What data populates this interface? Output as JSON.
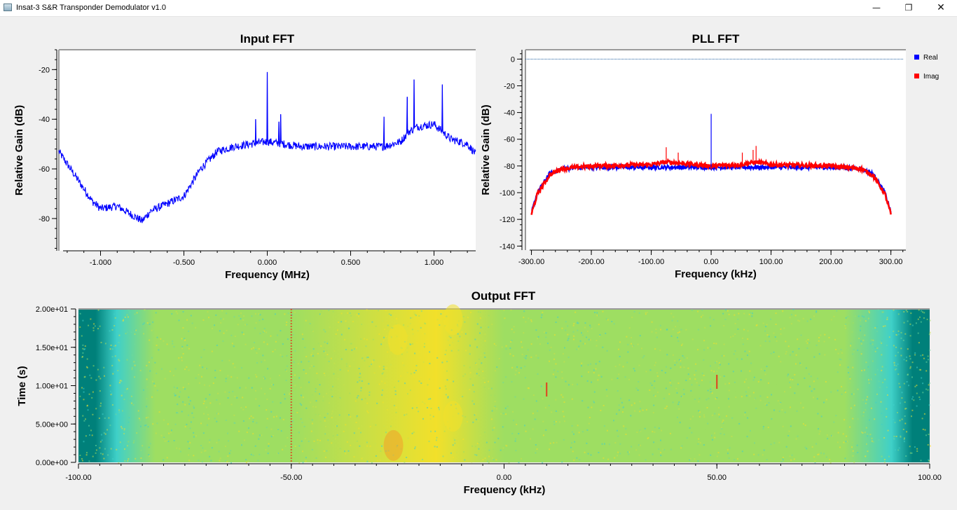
{
  "window": {
    "title": "Insat-3 S&R Transponder Demodulator v1.0",
    "minimize_glyph": "—",
    "maximize_glyph": "❐",
    "close_glyph": "✕"
  },
  "chart_data": [
    {
      "type": "line",
      "title": "Input FFT",
      "xlabel": "Frequency (MHz)",
      "ylabel": "Relative Gain (dB)",
      "xlim": [
        -1.25,
        1.25
      ],
      "ylim": [
        -93,
        -12
      ],
      "x_ticks": [
        -1.0,
        -0.5,
        0.0,
        0.5,
        1.0
      ],
      "x_tick_labels": [
        "-1.000",
        "-0.500",
        "0.000",
        "0.500",
        "1.000"
      ],
      "y_ticks": [
        -80,
        -60,
        -40,
        -20
      ],
      "y_tick_labels": [
        "-80",
        "-60",
        "-40",
        "-20"
      ],
      "series": [
        {
          "color": "#0000ff",
          "x": [
            -1.25,
            -1.15,
            -1.05,
            -1.0,
            -0.9,
            -0.8,
            -0.75,
            -0.7,
            -0.6,
            -0.5,
            -0.4,
            -0.3,
            -0.2,
            -0.1,
            0.0,
            0.1,
            0.2,
            0.3,
            0.4,
            0.5,
            0.6,
            0.7,
            0.8,
            0.85,
            0.9,
            1.0,
            1.05,
            1.1,
            1.2,
            1.25
          ],
          "values": [
            -53,
            -63,
            -73,
            -76,
            -75,
            -79,
            -81,
            -77,
            -74,
            -71,
            -60,
            -53,
            -51,
            -50,
            -49,
            -50,
            -51,
            -51,
            -51,
            -51,
            -51,
            -51,
            -49,
            -45,
            -43,
            -42,
            -45,
            -48,
            -50,
            -54
          ]
        }
      ],
      "peaks": [
        {
          "x": -0.07,
          "value": -40
        },
        {
          "x": 0.0,
          "value": -21
        },
        {
          "x": 0.07,
          "value": -41
        },
        {
          "x": 0.08,
          "value": -38
        },
        {
          "x": 0.7,
          "value": -39
        },
        {
          "x": 0.84,
          "value": -31
        },
        {
          "x": 0.88,
          "value": -24
        },
        {
          "x": 1.05,
          "value": -26
        }
      ],
      "grid": false
    },
    {
      "type": "line",
      "title": "PLL FFT",
      "xlabel": "Frequency (kHz)",
      "ylabel": "Relative Gain (dB)",
      "xlim": [
        -310,
        325
      ],
      "ylim": [
        -143,
        7
      ],
      "x_ticks": [
        -300,
        -200,
        -100,
        0,
        100,
        200,
        300
      ],
      "x_tick_labels": [
        "-300.00",
        "-200.00",
        "-100.00",
        "0.00",
        "100.00",
        "200.00",
        "300.00"
      ],
      "y_ticks": [
        -140,
        -120,
        -100,
        -80,
        -60,
        -40,
        -20,
        0
      ],
      "y_tick_labels": [
        "-140",
        "-120",
        "-100",
        "-80",
        "-60",
        "-40",
        "-20",
        "0"
      ],
      "legend": {
        "placement": "right",
        "entries": [
          "Real",
          "Imag"
        ]
      },
      "series": [
        {
          "name": "Real",
          "color": "#0000ff",
          "x": [
            -300,
            -290,
            -270,
            -250,
            -200,
            -100,
            0,
            100,
            200,
            250,
            270,
            290,
            300
          ],
          "values": [
            -115,
            -100,
            -86,
            -82,
            -81,
            -81,
            -81,
            -81,
            -81,
            -82,
            -86,
            -100,
            -115
          ]
        },
        {
          "name": "Imag",
          "color": "#ff0000",
          "x": [
            -300,
            -290,
            -270,
            -250,
            -200,
            -100,
            -75,
            -50,
            0,
            50,
            75,
            100,
            200,
            250,
            270,
            290,
            300
          ],
          "values": [
            -116,
            -101,
            -87,
            -82,
            -80,
            -79,
            -77,
            -78,
            -80,
            -79,
            -77,
            -79,
            -80,
            -82,
            -87,
            -101,
            -116
          ]
        }
      ],
      "real_peaks": [
        {
          "x": 0,
          "value": -41
        }
      ],
      "imag_peaks": [
        {
          "x": -75,
          "value": -66
        },
        {
          "x": -55,
          "value": -70
        },
        {
          "x": 52,
          "value": -70
        },
        {
          "x": 70,
          "value": -68
        },
        {
          "x": 75,
          "value": -65
        }
      ],
      "reference_line": {
        "value": 0,
        "color": "#1f5fa0"
      },
      "grid": false
    },
    {
      "type": "heatmap",
      "title": "Output FFT",
      "xlabel": "Frequency (kHz)",
      "ylabel": "Time (s)",
      "xlim": [
        -100,
        100
      ],
      "ylim": [
        0,
        20
      ],
      "x_ticks": [
        -100,
        -50,
        0,
        50,
        100
      ],
      "x_tick_labels": [
        "-100.00",
        "-50.00",
        "0.00",
        "50.00",
        "100.00"
      ],
      "y_ticks": [
        0,
        5,
        10,
        15,
        20
      ],
      "y_tick_labels": [
        "0.00e+00",
        "5.00e+00",
        "1.00e+01",
        "1.50e+01",
        "2.00e+01"
      ],
      "colors": {
        "edge": "#00807a",
        "mid": "#3fd0c8",
        "body": "#9ede62",
        "hot": "#f2e02a",
        "peak": "#e0401f"
      },
      "features": [
        {
          "type": "vertical-line",
          "x": -50,
          "color": "#e0401f"
        },
        {
          "type": "blob",
          "x": -25,
          "y": 16,
          "color": "#f2e02a"
        },
        {
          "type": "blob",
          "x": -12,
          "y": 6,
          "color": "#f2e02a"
        },
        {
          "type": "blob",
          "x": -26,
          "y": 2.2,
          "color": "#f2a02a"
        },
        {
          "type": "blob",
          "x": -12,
          "y": 18.6,
          "color": "#f2e02a"
        },
        {
          "type": "spike",
          "x": 10,
          "y": 9.5,
          "color": "#e0401f"
        },
        {
          "type": "spike",
          "x": 50,
          "y": 10.5,
          "color": "#e0401f"
        }
      ]
    }
  ]
}
